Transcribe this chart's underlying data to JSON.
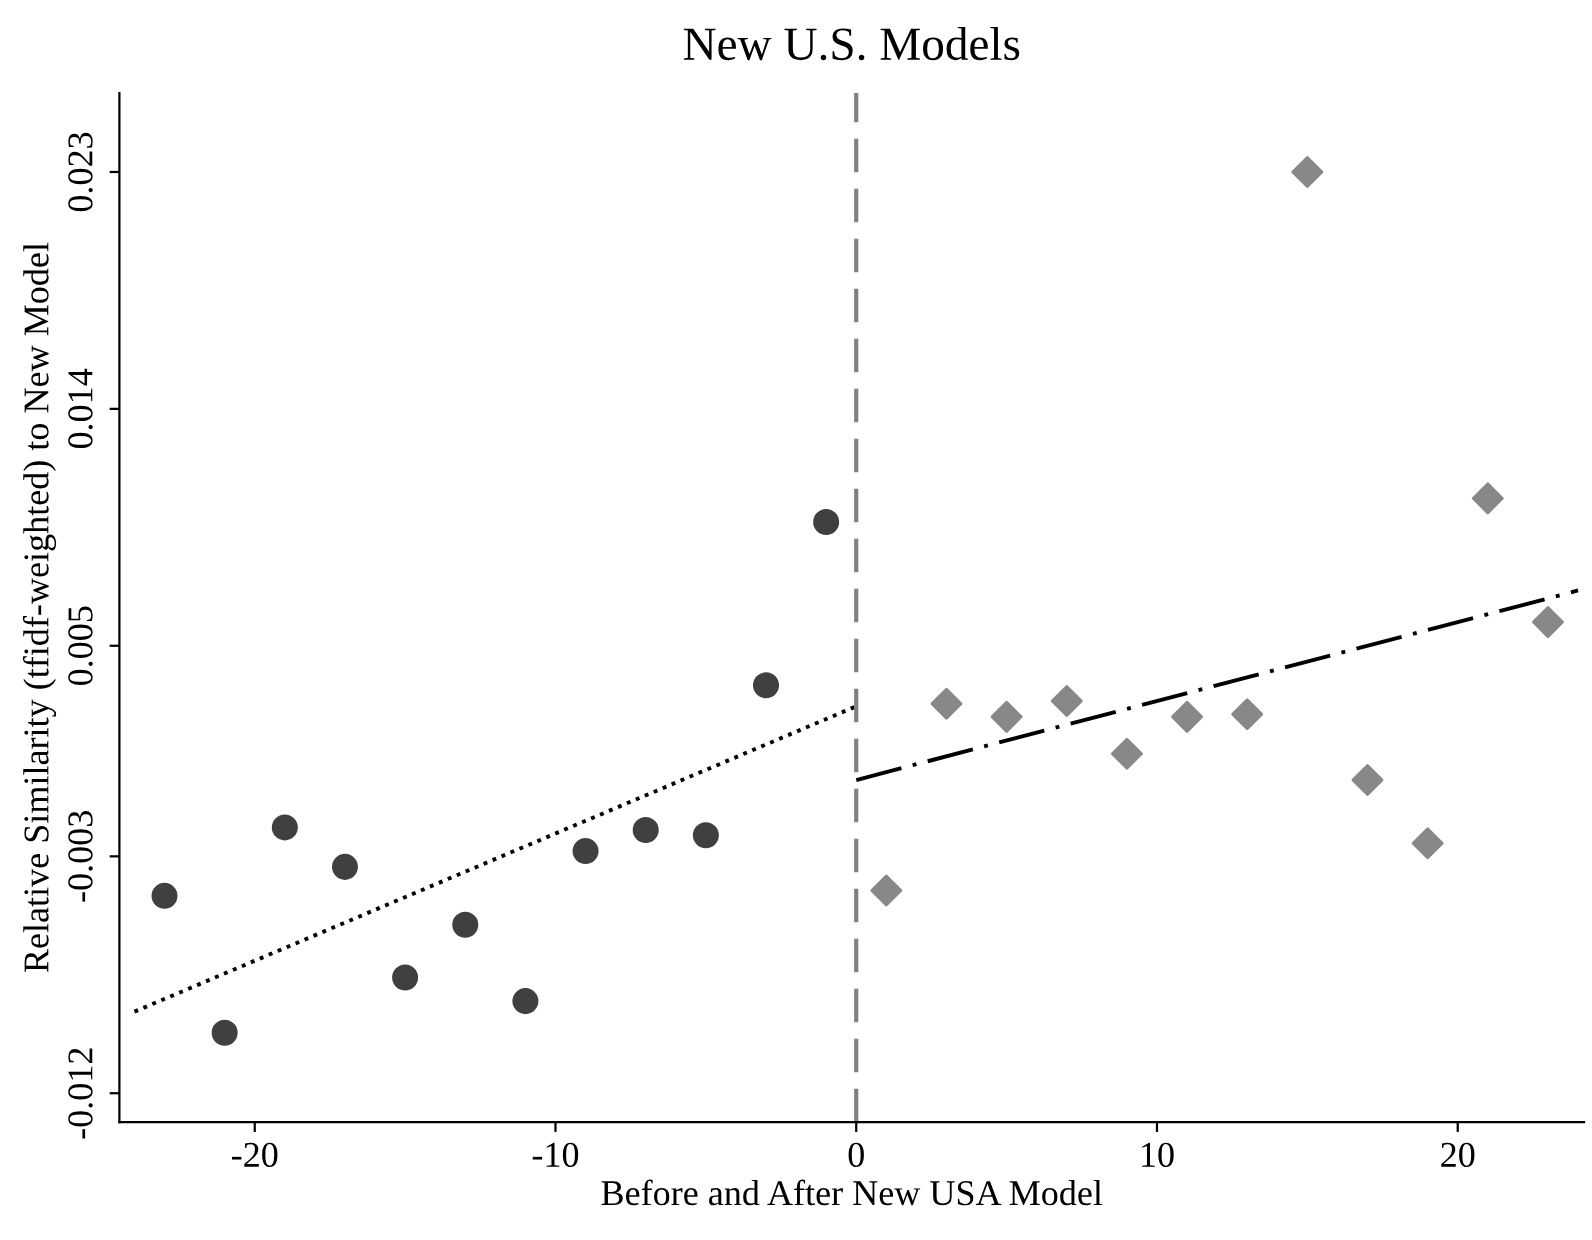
{
  "chart_data": {
    "type": "scatter",
    "title": "New U.S. Models",
    "xlabel": "Before and After New USA Model",
    "ylabel": "Relative Similarity (tfidf-weighted) to New Model",
    "xlim": [
      -24.5,
      24.2
    ],
    "ylim": [
      -0.0131,
      0.026
    ],
    "xticks": [
      -20,
      -10,
      0,
      10,
      20
    ],
    "yticks": [
      -0.012,
      -0.003,
      0.005,
      0.014,
      0.023
    ],
    "grid": false,
    "series": [
      {
        "marker": "circle",
        "color": "#404040",
        "x": [
          -23,
          -21,
          -19,
          -17,
          -15,
          -13,
          -11,
          -9,
          -7,
          -5,
          -3,
          -1
        ],
        "values": [
          -0.0045,
          -0.0097,
          -0.0019,
          -0.0034,
          -0.0076,
          -0.0056,
          -0.0085,
          -0.0028,
          -0.002,
          -0.0022,
          0.0035,
          0.0097
        ]
      },
      {
        "marker": "diamond",
        "color": "#888888",
        "x": [
          1,
          3,
          5,
          7,
          9,
          11,
          13,
          15,
          17,
          19,
          21,
          23
        ],
        "values": [
          -0.0043,
          0.0028,
          0.0023,
          0.0029,
          0.0009,
          0.0023,
          0.0024,
          0.023,
          -0.0001,
          -0.0025,
          0.0106,
          0.0059
        ]
      },
      {
        "type": "line",
        "line_style": "dotted",
        "color": "#000000",
        "x": [
          -24,
          0
        ],
        "values": [
          -0.0089,
          0.0027
        ]
      },
      {
        "type": "line",
        "line_style": "dashdot",
        "color": "#000000",
        "x": [
          0,
          24
        ],
        "values": [
          -0.0001,
          0.0071
        ]
      }
    ],
    "ref_lines": [
      {
        "axis": "x",
        "value": 0,
        "color": "#808080",
        "line_style": "dashed"
      }
    ]
  }
}
